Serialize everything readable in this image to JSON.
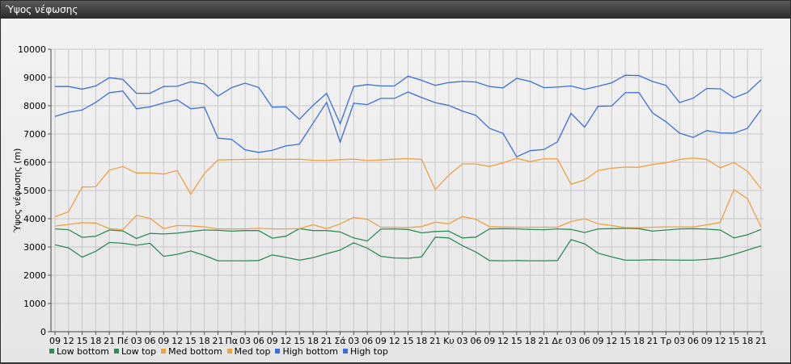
{
  "window": {
    "title": "Ύψος νέφωσης"
  },
  "chart_data": {
    "type": "line",
    "ylabel": "Ύψος νέφωσης (m)",
    "ylim": [
      0,
      10000
    ],
    "yticks": [
      0,
      1000,
      2000,
      3000,
      4000,
      5000,
      6000,
      7000,
      8000,
      9000,
      10000
    ],
    "x": [
      "09",
      "12",
      "15",
      "18",
      "21",
      "Πέ",
      "03",
      "06",
      "09",
      "12",
      "15",
      "18",
      "21",
      "Πα",
      "03",
      "06",
      "09",
      "12",
      "15",
      "18",
      "21",
      "Σά",
      "03",
      "06",
      "09",
      "12",
      "15",
      "18",
      "21",
      "Κυ",
      "03",
      "06",
      "09",
      "12",
      "15",
      "18",
      "21",
      "Δε",
      "03",
      "06",
      "09",
      "12",
      "15",
      "18",
      "21",
      "Τρ",
      "03",
      "06",
      "09",
      "12",
      "15",
      "18",
      "21"
    ],
    "grid": true,
    "legend_position": "bottom-left",
    "series": [
      {
        "name": "Low bottom",
        "color": "#2e8b57",
        "values": [
          3080,
          2970,
          2640,
          2850,
          3160,
          3130,
          3060,
          3130,
          2670,
          2740,
          2860,
          2700,
          2510,
          2510,
          2510,
          2520,
          2720,
          2630,
          2530,
          2620,
          2760,
          2890,
          3150,
          2960,
          2670,
          2610,
          2600,
          2650,
          3350,
          3320,
          3050,
          2820,
          2520,
          2510,
          2520,
          2510,
          2510,
          2520,
          3260,
          3110,
          2780,
          2650,
          2530,
          2530,
          2550,
          2540,
          2530,
          2530,
          2560,
          2610,
          2740,
          2890,
          3040
        ]
      },
      {
        "name": "Low top",
        "color": "#2e8b57",
        "values": [
          3640,
          3610,
          3340,
          3380,
          3600,
          3570,
          3300,
          3480,
          3460,
          3490,
          3550,
          3600,
          3590,
          3560,
          3580,
          3580,
          3310,
          3380,
          3650,
          3580,
          3580,
          3530,
          3320,
          3210,
          3630,
          3640,
          3620,
          3500,
          3550,
          3560,
          3320,
          3350,
          3640,
          3650,
          3640,
          3620,
          3610,
          3640,
          3620,
          3510,
          3640,
          3650,
          3660,
          3650,
          3560,
          3600,
          3640,
          3650,
          3630,
          3600,
          3320,
          3430,
          3620
        ]
      },
      {
        "name": "Med bottom",
        "color": "#f0a040",
        "values": [
          3740,
          3800,
          3860,
          3850,
          3650,
          3610,
          4120,
          4010,
          3650,
          3760,
          3750,
          3710,
          3640,
          3640,
          3640,
          3660,
          3640,
          3640,
          3650,
          3790,
          3650,
          3820,
          4050,
          3980,
          3700,
          3700,
          3690,
          3720,
          3880,
          3820,
          4080,
          3980,
          3720,
          3710,
          3700,
          3700,
          3700,
          3700,
          3900,
          4000,
          3820,
          3760,
          3690,
          3680,
          3700,
          3710,
          3710,
          3710,
          3780,
          3870,
          5030,
          4710,
          3700
        ]
      },
      {
        "name": "Med top",
        "color": "#f0a040",
        "values": [
          4070,
          4250,
          5120,
          5130,
          5720,
          5850,
          5620,
          5620,
          5580,
          5710,
          4870,
          5600,
          6080,
          6090,
          6100,
          6110,
          6110,
          6100,
          6110,
          6070,
          6060,
          6090,
          6110,
          6060,
          6080,
          6110,
          6130,
          6100,
          5030,
          5540,
          5940,
          5940,
          5850,
          5980,
          6140,
          6020,
          6120,
          6120,
          5220,
          5370,
          5710,
          5790,
          5830,
          5820,
          5920,
          5980,
          6100,
          6150,
          6100,
          5800,
          5990,
          5680,
          5070
        ]
      },
      {
        "name": "High bottom",
        "color": "#3a6fd8",
        "values": [
          7620,
          7770,
          7850,
          8120,
          8460,
          8520,
          7890,
          7960,
          8100,
          8210,
          7890,
          7950,
          6850,
          6810,
          6440,
          6350,
          6420,
          6580,
          6640,
          7380,
          8120,
          6710,
          8090,
          8040,
          8260,
          8260,
          8490,
          8290,
          8110,
          8010,
          7810,
          7660,
          7200,
          7020,
          6190,
          6410,
          6450,
          6720,
          7730,
          7240,
          7980,
          7990,
          8460,
          8470,
          7750,
          7430,
          7030,
          6880,
          7120,
          7040,
          7030,
          7200,
          7860
        ]
      },
      {
        "name": "High top",
        "color": "#3a6fd8",
        "values": [
          8680,
          8680,
          8590,
          8700,
          8990,
          8930,
          8440,
          8440,
          8680,
          8690,
          8850,
          8770,
          8340,
          8640,
          8800,
          8650,
          7950,
          7960,
          7520,
          8010,
          8440,
          7360,
          8680,
          8750,
          8700,
          8700,
          9050,
          8900,
          8720,
          8820,
          8860,
          8840,
          8680,
          8630,
          8970,
          8860,
          8640,
          8660,
          8700,
          8580,
          8690,
          8810,
          9080,
          9070,
          8860,
          8720,
          8110,
          8270,
          8610,
          8600,
          8280,
          8470,
          8920
        ]
      }
    ]
  }
}
